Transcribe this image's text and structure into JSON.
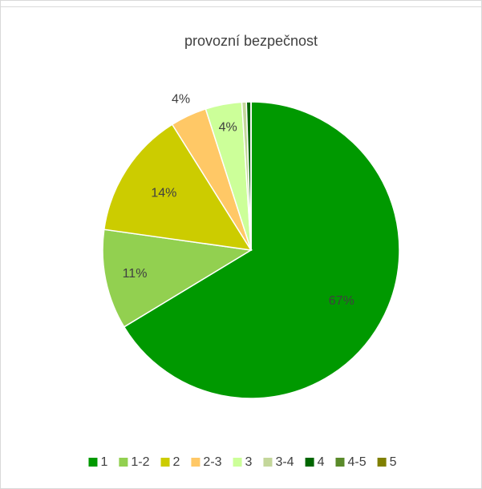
{
  "chart_data": {
    "type": "pie",
    "title": "provozní bezpečnost",
    "categories": [
      "1",
      "1-2",
      "2",
      "2-3",
      "3",
      "3-4",
      "4",
      "4-5",
      "5"
    ],
    "values": [
      67,
      11,
      14,
      4,
      4,
      0.5,
      0.5,
      0,
      0
    ],
    "value_labels": [
      "67%",
      "11%",
      "14%",
      "4%",
      "4%",
      null,
      null,
      null,
      null
    ],
    "colors": [
      "#009900",
      "#92d050",
      "#cccc00",
      "#ffc866",
      "#ccff99",
      "#c4d79b",
      "#006600",
      "#5a8a2a",
      "#808000"
    ],
    "legend": "bottom"
  }
}
